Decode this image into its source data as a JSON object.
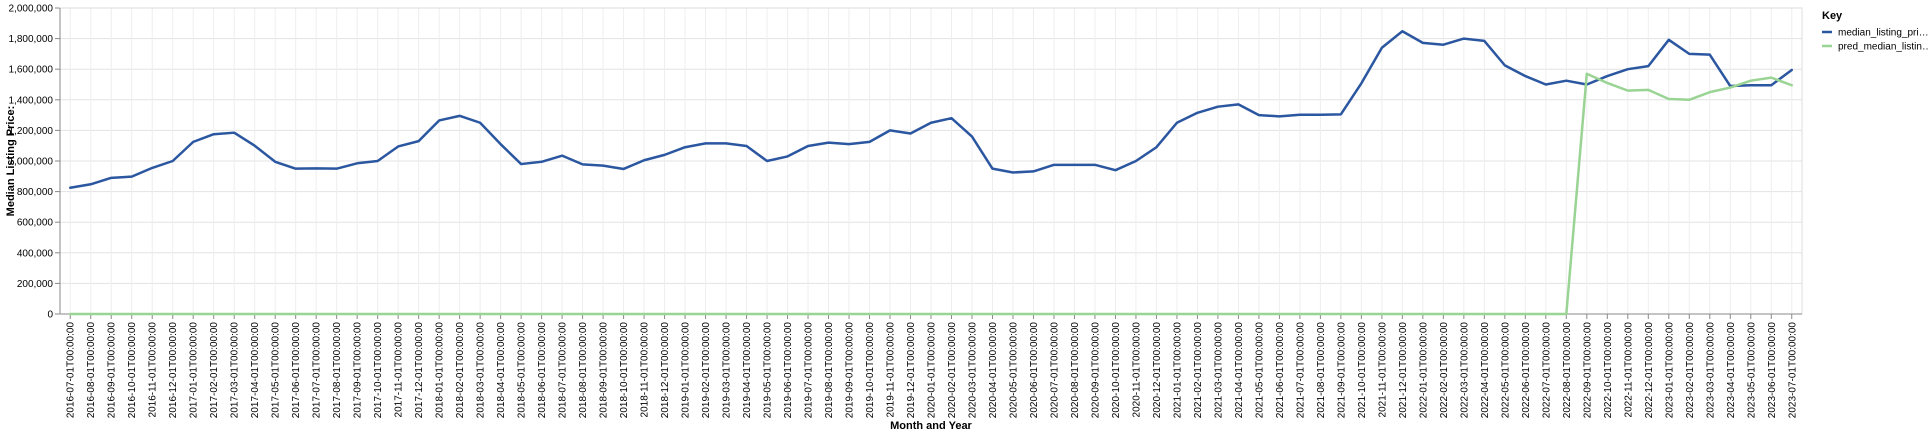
{
  "chart_data": {
    "type": "line",
    "xlabel": "Month and Year",
    "ylabel": "Median Listing Price:",
    "ylim": [
      0,
      2000000
    ],
    "grid": true,
    "legend_position": "top-right",
    "legend_title": "Key",
    "y_ticks": [
      "0",
      "200,000",
      "400,000",
      "600,000",
      "800,000",
      "1,000,000",
      "1,200,000",
      "1,400,000",
      "1,600,000",
      "1,800,000",
      "2,000,000"
    ],
    "categories": [
      "2016-07-01T00:00:00",
      "2016-08-01T00:00:00",
      "2016-09-01T00:00:00",
      "2016-10-01T00:00:00",
      "2016-11-01T00:00:00",
      "2016-12-01T00:00:00",
      "2017-01-01T00:00:00",
      "2017-02-01T00:00:00",
      "2017-03-01T00:00:00",
      "2017-04-01T00:00:00",
      "2017-05-01T00:00:00",
      "2017-06-01T00:00:00",
      "2017-07-01T00:00:00",
      "2017-08-01T00:00:00",
      "2017-09-01T00:00:00",
      "2017-10-01T00:00:00",
      "2017-11-01T00:00:00",
      "2017-12-01T00:00:00",
      "2018-01-01T00:00:00",
      "2018-02-01T00:00:00",
      "2018-03-01T00:00:00",
      "2018-04-01T00:00:00",
      "2018-05-01T00:00:00",
      "2018-06-01T00:00:00",
      "2018-07-01T00:00:00",
      "2018-08-01T00:00:00",
      "2018-09-01T00:00:00",
      "2018-10-01T00:00:00",
      "2018-11-01T00:00:00",
      "2018-12-01T00:00:00",
      "2019-01-01T00:00:00",
      "2019-02-01T00:00:00",
      "2019-03-01T00:00:00",
      "2019-04-01T00:00:00",
      "2019-05-01T00:00:00",
      "2019-06-01T00:00:00",
      "2019-07-01T00:00:00",
      "2019-08-01T00:00:00",
      "2019-09-01T00:00:00",
      "2019-10-01T00:00:00",
      "2019-11-01T00:00:00",
      "2019-12-01T00:00:00",
      "2020-01-01T00:00:00",
      "2020-02-01T00:00:00",
      "2020-03-01T00:00:00",
      "2020-04-01T00:00:00",
      "2020-05-01T00:00:00",
      "2020-06-01T00:00:00",
      "2020-07-01T00:00:00",
      "2020-08-01T00:00:00",
      "2020-09-01T00:00:00",
      "2020-10-01T00:00:00",
      "2020-11-01T00:00:00",
      "2020-12-01T00:00:00",
      "2021-01-01T00:00:00",
      "2021-02-01T00:00:00",
      "2021-03-01T00:00:00",
      "2021-04-01T00:00:00",
      "2021-05-01T00:00:00",
      "2021-06-01T00:00:00",
      "2021-07-01T00:00:00",
      "2021-08-01T00:00:00",
      "2021-09-01T00:00:00",
      "2021-10-01T00:00:00",
      "2021-11-01T00:00:00",
      "2021-12-01T00:00:00",
      "2022-01-01T00:00:00",
      "2022-02-01T00:00:00",
      "2022-03-01T00:00:00",
      "2022-04-01T00:00:00",
      "2022-05-01T00:00:00",
      "2022-06-01T00:00:00",
      "2022-07-01T00:00:00",
      "2022-08-01T00:00:00",
      "2022-09-01T00:00:00",
      "2022-10-01T00:00:00",
      "2022-11-01T00:00:00",
      "2022-12-01T00:00:00",
      "2023-01-01T00:00:00",
      "2023-02-01T00:00:00",
      "2023-03-01T00:00:00",
      "2023-04-01T00:00:00",
      "2023-05-01T00:00:00",
      "2023-06-01T00:00:00",
      "2023-07-01T00:00:00"
    ],
    "series": [
      {
        "name": "median_listing_pri…",
        "color": "#2b56a0",
        "values": [
          825000,
          848000,
          890000,
          898000,
          955000,
          1000000,
          1125000,
          1175000,
          1185000,
          1100000,
          995000,
          950000,
          952000,
          950000,
          985000,
          1000000,
          1095000,
          1130000,
          1265000,
          1295000,
          1250000,
          1110000,
          980000,
          995000,
          1035000,
          978000,
          970000,
          948000,
          1005000,
          1040000,
          1090000,
          1115000,
          1115000,
          1098000,
          1000000,
          1030000,
          1098000,
          1120000,
          1110000,
          1125000,
          1200000,
          1180000,
          1250000,
          1280000,
          1160000,
          950000,
          925000,
          932000,
          975000,
          975000,
          975000,
          940000,
          1000000,
          1090000,
          1250000,
          1315000,
          1355000,
          1370000,
          1300000,
          1292000,
          1302000,
          1302000,
          1305000,
          1508000,
          1740000,
          1848000,
          1772000,
          1760000,
          1800000,
          1785000,
          1625000,
          1555000,
          1500000,
          1525000,
          1500000,
          1555000,
          1600000,
          1620000,
          1792000,
          1700000,
          1695000,
          1490000,
          1495000,
          1495000,
          1595000
        ]
      },
      {
        "name": "pred_median_listin…",
        "color": "#9ad494",
        "values": [
          0,
          0,
          0,
          0,
          0,
          0,
          0,
          0,
          0,
          0,
          0,
          0,
          0,
          0,
          0,
          0,
          0,
          0,
          0,
          0,
          0,
          0,
          0,
          0,
          0,
          0,
          0,
          0,
          0,
          0,
          0,
          0,
          0,
          0,
          0,
          0,
          0,
          0,
          0,
          0,
          0,
          0,
          0,
          0,
          0,
          0,
          0,
          0,
          0,
          0,
          0,
          0,
          0,
          0,
          0,
          0,
          0,
          0,
          0,
          0,
          0,
          0,
          0,
          0,
          0,
          0,
          0,
          0,
          0,
          0,
          0,
          0,
          0,
          0,
          1570000,
          1510000,
          1460000,
          1465000,
          1405000,
          1400000,
          1450000,
          1480000,
          1525000,
          1545000,
          1495000
        ]
      }
    ]
  }
}
